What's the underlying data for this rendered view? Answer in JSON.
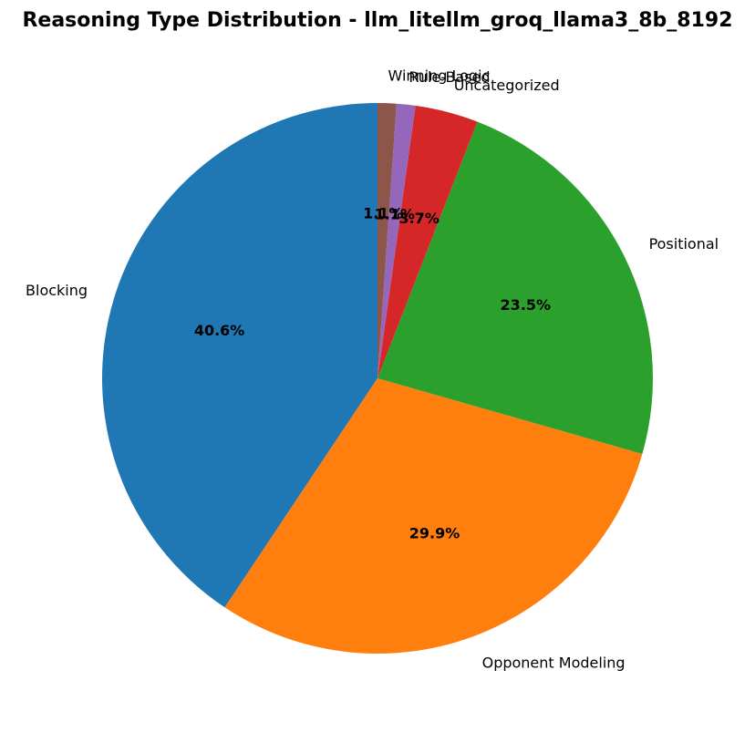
{
  "chart_data": {
    "type": "pie",
    "title": "Reasoning Type Distribution - llm_litellm_groq_llama3_8b_8192",
    "slices": [
      {
        "label": "Blocking",
        "value": 40.6,
        "pct_label": "40.6%",
        "color": "#1f77b4"
      },
      {
        "label": "Opponent Modeling",
        "value": 29.9,
        "pct_label": "29.9%",
        "color": "#ff7f0e"
      },
      {
        "label": "Positional",
        "value": 23.5,
        "pct_label": "23.5%",
        "color": "#2ca02c"
      },
      {
        "label": "Uncategorized",
        "value": 3.7,
        "pct_label": "3.7%",
        "color": "#d62728"
      },
      {
        "label": "Rule-Based",
        "value": 1.1,
        "pct_label": "1.1%",
        "color": "#9467bd"
      },
      {
        "label": "Winning Logic",
        "value": 1.1,
        "pct_label": "1.1%",
        "color": "#8c564b"
      }
    ],
    "start_angle_deg": 90,
    "direction": "counterclockwise"
  }
}
